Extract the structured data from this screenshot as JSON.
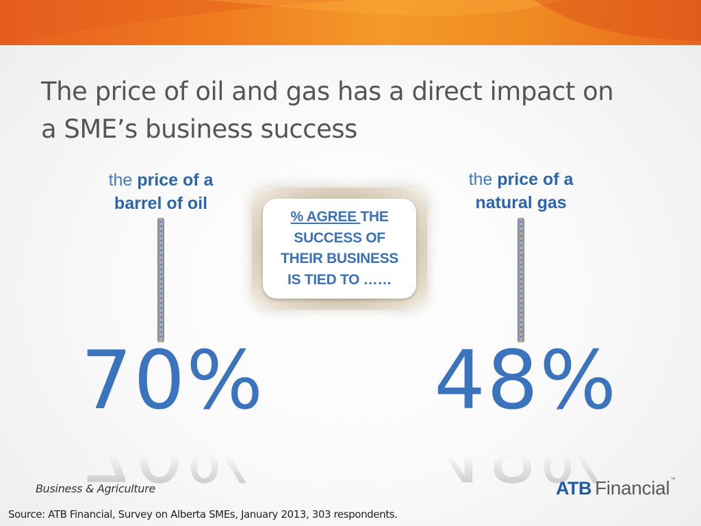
{
  "slide": {
    "title_line1": "The price of oil and gas has a direct impact on",
    "title_line2": "a SME’s business success"
  },
  "oil": {
    "label_light": "the",
    "label_strong_1": "price of a",
    "label_strong_2": "barrel of oil",
    "percent": "70%"
  },
  "gas": {
    "label_light": "the",
    "label_strong_1": "price of a",
    "label_strong_2": "natural gas",
    "percent": "48%"
  },
  "callout": {
    "underlined": "% AGREE ",
    "line1_rest": "THE",
    "line2": "SUCCESS OF",
    "line3": "THEIR BUSINESS",
    "line4": "IS TIED TO ……"
  },
  "footer": {
    "division": "Business & Agriculture",
    "source": "Source:  ATB Financial, Survey on Alberta SMEs, January 2013, 303 respondents."
  },
  "logo": {
    "atb": "ATB",
    "financial": "Financial",
    "tm": "™"
  },
  "colors": {
    "banner_orange": "#f07a1f",
    "accent_blue": "#3b74bd",
    "title_gray": "#555555"
  }
}
